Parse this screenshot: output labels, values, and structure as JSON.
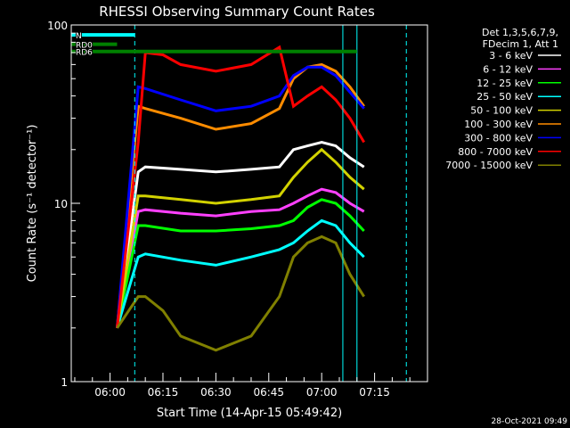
{
  "chart_data": {
    "type": "line",
    "title": "RHESSI Observing Summary Count Rates",
    "xlabel": "Start Time (14-Apr-15 05:49:42)",
    "ylabel": "Count Rate (s⁻¹ detector⁻¹)",
    "timestamp": "28-Oct-2021 09:49",
    "x_unit": "minutes",
    "xlim": [
      -11.0,
      90.0
    ],
    "ylim": [
      1,
      100
    ],
    "yscale": "log",
    "x_ticks": [
      {
        "label": "06:00",
        "value": 0
      },
      {
        "label": "06:15",
        "value": 15
      },
      {
        "label": "06:30",
        "value": 30
      },
      {
        "label": "06:45",
        "value": 45
      },
      {
        "label": "07:00",
        "value": 60
      },
      {
        "label": "07:15",
        "value": 75
      }
    ],
    "y_ticks": [
      {
        "label": "1",
        "value": 1
      },
      {
        "label": "10",
        "value": 10
      },
      {
        "label": "100",
        "value": 100
      }
    ],
    "legend_header": [
      "Det 1,3,5,6,7,9,",
      "FDecim 1, Att 1"
    ],
    "legend_placement": "right",
    "series": [
      {
        "name": "3 - 6 keV",
        "color": "#ffffff",
        "points": [
          [
            2,
            2
          ],
          [
            8,
            15
          ],
          [
            10,
            16
          ],
          [
            20,
            15.5
          ],
          [
            30,
            15
          ],
          [
            40,
            15.5
          ],
          [
            48,
            16
          ],
          [
            52,
            20
          ],
          [
            56,
            21
          ],
          [
            60,
            22
          ],
          [
            64,
            21
          ],
          [
            68,
            18
          ],
          [
            72,
            16
          ]
        ]
      },
      {
        "name": "6 - 12 keV",
        "color": "#ff40ff",
        "points": [
          [
            2,
            2
          ],
          [
            8,
            9
          ],
          [
            10,
            9.2
          ],
          [
            20,
            8.8
          ],
          [
            30,
            8.5
          ],
          [
            40,
            9
          ],
          [
            48,
            9.2
          ],
          [
            52,
            10
          ],
          [
            56,
            11
          ],
          [
            60,
            12
          ],
          [
            64,
            11.5
          ],
          [
            68,
            10
          ],
          [
            72,
            9
          ]
        ]
      },
      {
        "name": "12 - 25 keV",
        "color": "#00ff00",
        "points": [
          [
            2,
            2
          ],
          [
            8,
            7.5
          ],
          [
            10,
            7.5
          ],
          [
            20,
            7
          ],
          [
            30,
            7
          ],
          [
            40,
            7.2
          ],
          [
            48,
            7.5
          ],
          [
            52,
            8
          ],
          [
            56,
            9.5
          ],
          [
            60,
            10.5
          ],
          [
            64,
            10
          ],
          [
            68,
            8.5
          ],
          [
            72,
            7
          ]
        ]
      },
      {
        "name": "25 - 50 keV",
        "color": "#00ffff",
        "points": [
          [
            2,
            2
          ],
          [
            8,
            5
          ],
          [
            10,
            5.2
          ],
          [
            20,
            4.8
          ],
          [
            30,
            4.5
          ],
          [
            40,
            5
          ],
          [
            48,
            5.5
          ],
          [
            52,
            6
          ],
          [
            56,
            7
          ],
          [
            60,
            8
          ],
          [
            64,
            7.5
          ],
          [
            68,
            6
          ],
          [
            72,
            5
          ]
        ]
      },
      {
        "name": "50 - 100 keV",
        "color": "#d2d200",
        "points": [
          [
            2,
            2
          ],
          [
            8,
            11
          ],
          [
            10,
            11
          ],
          [
            20,
            10.5
          ],
          [
            30,
            10
          ],
          [
            40,
            10.5
          ],
          [
            48,
            11
          ],
          [
            52,
            14
          ],
          [
            56,
            17
          ],
          [
            60,
            20
          ],
          [
            64,
            17
          ],
          [
            68,
            14
          ],
          [
            72,
            12
          ]
        ]
      },
      {
        "name": "100 - 300 keV",
        "color": "#ff8c00",
        "points": [
          [
            2,
            2
          ],
          [
            8,
            35
          ],
          [
            10,
            34
          ],
          [
            20,
            30
          ],
          [
            30,
            26
          ],
          [
            40,
            28
          ],
          [
            48,
            34
          ],
          [
            52,
            50
          ],
          [
            56,
            58
          ],
          [
            60,
            60
          ],
          [
            64,
            55
          ],
          [
            68,
            45
          ],
          [
            72,
            35
          ]
        ]
      },
      {
        "name": "300 - 800 keV",
        "color": "#0000ff",
        "points": [
          [
            2,
            2
          ],
          [
            8,
            45
          ],
          [
            10,
            44
          ],
          [
            20,
            38
          ],
          [
            30,
            33
          ],
          [
            40,
            35
          ],
          [
            48,
            40
          ],
          [
            52,
            52
          ],
          [
            56,
            58
          ],
          [
            60,
            58
          ],
          [
            64,
            52
          ],
          [
            68,
            42
          ],
          [
            72,
            34
          ]
        ]
      },
      {
        "name": "800 - 7000 keV",
        "color": "#ff0000",
        "points": [
          [
            2,
            2
          ],
          [
            8,
            22
          ],
          [
            10,
            70
          ],
          [
            15,
            68
          ],
          [
            20,
            60
          ],
          [
            30,
            55
          ],
          [
            40,
            60
          ],
          [
            48,
            75
          ],
          [
            52,
            35
          ],
          [
            56,
            40
          ],
          [
            60,
            45
          ],
          [
            64,
            38
          ],
          [
            68,
            30
          ],
          [
            72,
            22
          ]
        ]
      },
      {
        "name": "7000 - 15000 keV",
        "color": "#808000",
        "points": [
          [
            2,
            2
          ],
          [
            8,
            3
          ],
          [
            10,
            3
          ],
          [
            15,
            2.5
          ],
          [
            20,
            1.8
          ],
          [
            30,
            1.5
          ],
          [
            40,
            1.8
          ],
          [
            48,
            3
          ],
          [
            52,
            5
          ],
          [
            56,
            6
          ],
          [
            60,
            6.5
          ],
          [
            64,
            6
          ],
          [
            68,
            4
          ],
          [
            72,
            3
          ]
        ]
      }
    ],
    "annotations": [
      {
        "label": "N",
        "color": "#00ffff",
        "x": [
          -11,
          7
        ],
        "y": 88
      },
      {
        "label": "RD0",
        "color": "#008000",
        "x": [
          -11,
          2
        ],
        "y": 78
      },
      {
        "label": "RD6",
        "color": "#008000",
        "x": [
          -11,
          70
        ],
        "y": 71
      }
    ],
    "vertical_markers": [
      {
        "x": 7,
        "color": "#00ffff",
        "style": "dashed"
      },
      {
        "x": 66,
        "color": "#00ffff",
        "style": "solid"
      },
      {
        "x": 70,
        "color": "#00ffff",
        "style": "solid"
      },
      {
        "x": 84,
        "color": "#00ffff",
        "style": "dashed"
      }
    ]
  }
}
